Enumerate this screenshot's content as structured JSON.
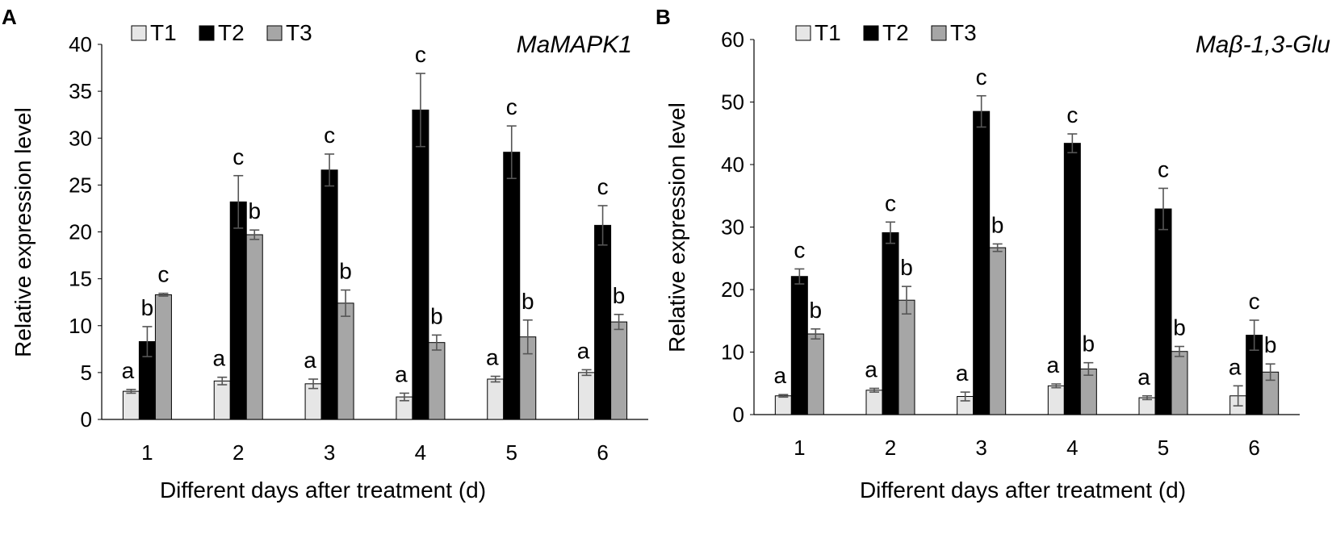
{
  "chart_data": [
    {
      "type": "bar",
      "panel_label": "A",
      "title": "MaMAPK1",
      "xlabel": "Different days after treatment (d)",
      "ylabel": "Relative expression level",
      "categories": [
        "1",
        "2",
        "3",
        "4",
        "5",
        "6"
      ],
      "ylim": [
        0,
        40
      ],
      "yticks": [
        "0",
        "5",
        "10",
        "15",
        "20",
        "25",
        "30",
        "35",
        "40"
      ],
      "series": [
        {
          "name": "T1",
          "color": "#e6e6e6",
          "values": [
            3.0,
            4.1,
            3.8,
            2.4,
            4.3,
            5.0
          ],
          "errors": [
            0.2,
            0.4,
            0.5,
            0.4,
            0.3,
            0.3
          ],
          "letters": [
            "a",
            "a",
            "a",
            "a",
            "a",
            "a"
          ]
        },
        {
          "name": "T2",
          "color": "#000000",
          "values": [
            8.3,
            23.2,
            26.6,
            33.0,
            28.5,
            20.7
          ],
          "errors": [
            1.6,
            2.8,
            1.7,
            3.9,
            2.8,
            2.1
          ],
          "letters": [
            "b",
            "c",
            "c",
            "c",
            "c",
            "c"
          ]
        },
        {
          "name": "T3",
          "color": "#a6a6a6",
          "values": [
            13.3,
            19.7,
            12.4,
            8.2,
            8.8,
            10.4
          ],
          "errors": [
            0.15,
            0.5,
            1.4,
            0.8,
            1.8,
            0.8
          ],
          "letters": [
            "c",
            "b",
            "b",
            "b",
            "b",
            "b"
          ]
        }
      ]
    },
    {
      "type": "bar",
      "panel_label": "B",
      "title": "Maβ-1,3-Glu",
      "xlabel": "Different days after treatment (d)",
      "ylabel": "Relative expression level",
      "categories": [
        "1",
        "2",
        "3",
        "4",
        "5",
        "6"
      ],
      "ylim": [
        0,
        60
      ],
      "yticks": [
        "0",
        "10",
        "20",
        "30",
        "40",
        "50",
        "60"
      ],
      "series": [
        {
          "name": "T1",
          "color": "#e6e6e6",
          "values": [
            3.0,
            3.9,
            2.9,
            4.6,
            2.7,
            3.0
          ],
          "errors": [
            0.2,
            0.3,
            0.7,
            0.3,
            0.3,
            1.6
          ],
          "letters": [
            "a",
            "a",
            "a",
            "a",
            "a",
            "a"
          ]
        },
        {
          "name": "T2",
          "color": "#000000",
          "values": [
            22.1,
            29.1,
            48.5,
            43.4,
            32.9,
            12.7
          ],
          "errors": [
            1.2,
            1.7,
            2.5,
            1.5,
            3.3,
            2.4
          ],
          "letters": [
            "c",
            "c",
            "c",
            "c",
            "c",
            "c"
          ]
        },
        {
          "name": "T3",
          "color": "#a6a6a6",
          "values": [
            12.9,
            18.3,
            26.7,
            7.3,
            10.1,
            6.8
          ],
          "errors": [
            0.8,
            2.2,
            0.6,
            1.0,
            0.8,
            1.3
          ],
          "letters": [
            "b",
            "b",
            "b",
            "b",
            "b",
            "b"
          ]
        }
      ]
    }
  ]
}
